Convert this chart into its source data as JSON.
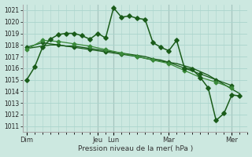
{
  "bg_color": "#cce8e0",
  "grid_color": "#aad4cc",
  "line_color_dark": "#1a5c1a",
  "line_color_light": "#3a8a3a",
  "xlabel": "Pression niveau de la mer( hPa )",
  "ylim": [
    1010.5,
    1021.5
  ],
  "yticks": [
    1011,
    1012,
    1013,
    1014,
    1015,
    1016,
    1017,
    1018,
    1019,
    1020,
    1021
  ],
  "x_day_labels": [
    "Dim",
    "Jeu",
    "Lun",
    "Mar",
    "Mer"
  ],
  "x_day_positions": [
    0,
    18,
    22,
    36,
    52
  ],
  "xlim": [
    -1,
    56
  ],
  "series1_jagged": {
    "x": [
      0,
      2,
      4,
      6,
      8,
      10,
      12,
      14,
      16,
      18,
      20,
      22,
      24,
      26,
      28,
      30,
      32,
      34,
      36,
      38,
      40,
      42,
      44,
      46,
      48,
      50,
      52,
      54
    ],
    "y": [
      1015.0,
      1016.1,
      1017.8,
      1018.5,
      1018.9,
      1019.0,
      1019.0,
      1018.8,
      1018.5,
      1019.0,
      1018.6,
      1021.2,
      1020.4,
      1020.5,
      1020.3,
      1020.2,
      1018.2,
      1017.8,
      1017.5,
      1018.4,
      1016.0,
      1015.9,
      1015.2,
      1014.3,
      1011.5,
      1012.1,
      1013.7,
      1013.6
    ]
  },
  "series2_smooth": {
    "x": [
      0,
      2,
      4,
      6,
      8,
      10,
      12,
      14,
      16,
      18,
      20,
      22,
      24,
      26,
      28,
      30,
      32,
      34,
      36,
      38,
      40,
      42,
      44,
      46,
      48,
      50,
      52,
      54
    ],
    "y": [
      1017.7,
      1017.8,
      1017.9,
      1018.0,
      1018.0,
      1017.9,
      1017.9,
      1017.8,
      1017.7,
      1017.6,
      1017.5,
      1017.4,
      1017.3,
      1017.2,
      1017.1,
      1017.0,
      1016.8,
      1016.7,
      1016.5,
      1016.4,
      1016.2,
      1016.0,
      1015.7,
      1015.4,
      1015.0,
      1014.6,
      1014.2,
      1013.8
    ]
  },
  "series3_marked": {
    "x": [
      0,
      4,
      8,
      12,
      16,
      20,
      24,
      28,
      32,
      36,
      40,
      44,
      48,
      52
    ],
    "y": [
      1017.8,
      1018.2,
      1018.0,
      1017.8,
      1017.6,
      1017.4,
      1017.2,
      1017.0,
      1016.7,
      1016.5,
      1016.0,
      1015.5,
      1015.0,
      1014.5
    ]
  },
  "series4_marked": {
    "x": [
      0,
      4,
      8,
      12,
      16,
      20,
      24,
      28,
      32,
      36,
      40,
      44,
      48,
      52
    ],
    "y": [
      1017.6,
      1018.4,
      1018.3,
      1018.1,
      1017.9,
      1017.6,
      1017.3,
      1017.0,
      1016.7,
      1016.4,
      1015.8,
      1015.2,
      1014.8,
      1014.3
    ]
  }
}
